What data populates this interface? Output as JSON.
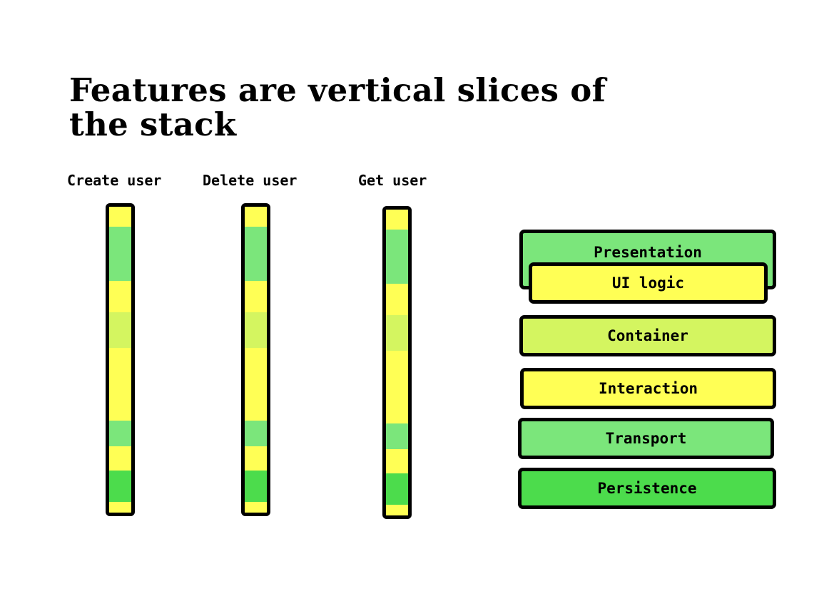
{
  "title": "Features are vertical slices of the stack",
  "colors": {
    "presentation": "#7be67b",
    "ui_logic": "#ffff55",
    "container": "#d4f560",
    "interaction": "#ffff55",
    "transport": "#7be67b",
    "persistence": "#4cdc4c",
    "border": "#000000"
  },
  "features": [
    {
      "label": "Create user"
    },
    {
      "label": "Delete user"
    },
    {
      "label": "Get user"
    }
  ],
  "slice_segments": [
    "ui_logic",
    "presentation",
    "ui_logic",
    "container",
    "interaction",
    "transport",
    "ui_logic",
    "persistence",
    "ui_logic"
  ],
  "layers": {
    "presentation": "Presentation",
    "ui_logic": "UI logic",
    "container": "Container",
    "interaction": "Interaction",
    "transport": "Transport",
    "persistence": "Persistence"
  }
}
